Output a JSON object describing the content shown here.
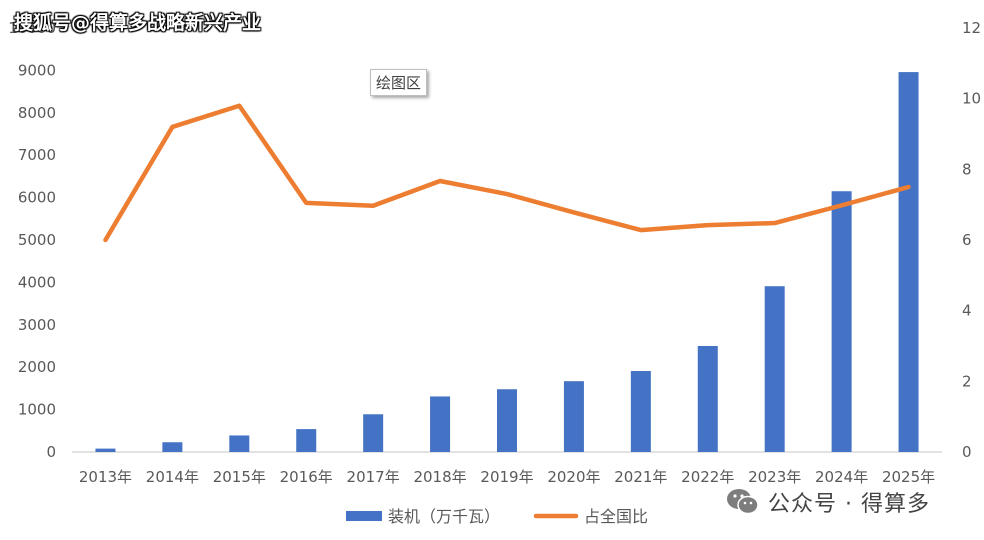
{
  "watermark_top": "搜狐号@得算多战略新兴产业",
  "plot_area_label": "绘图区",
  "watermark_bottom": "公众号 · 得算多",
  "colors": {
    "bar": "#4472C4",
    "line": "#ED7D31",
    "axis": "#d9d9d9",
    "text": "#595959"
  },
  "chart_data": {
    "type": "bar",
    "categories": [
      "2013年",
      "2014年",
      "2015年",
      "2016年",
      "2017年",
      "2018年",
      "2019年",
      "2020年",
      "2021年",
      "2022年",
      "2023年",
      "2024年",
      "2025年"
    ],
    "series": [
      {
        "name": "装机（万千瓦）",
        "type": "bar",
        "axis": "left",
        "values": [
          80,
          230,
          390,
          540,
          890,
          1310,
          1480,
          1670,
          1910,
          2500,
          3910,
          6150,
          8960
        ]
      },
      {
        "name": "占全国比",
        "type": "line",
        "axis": "right",
        "values": [
          6.0,
          9.2,
          9.8,
          7.05,
          6.97,
          7.67,
          7.3,
          6.78,
          6.28,
          6.42,
          6.48,
          6.98,
          7.5
        ]
      }
    ],
    "y_left": {
      "ticks": [
        "0",
        "1000",
        "2000",
        "3000",
        "4000",
        "5000",
        "6000",
        "7000",
        "8000",
        "9000",
        "10000"
      ],
      "range": [
        0,
        10000
      ]
    },
    "y_right": {
      "ticks": [
        "0",
        "2",
        "4",
        "6",
        "8",
        "10",
        "12"
      ],
      "range": [
        0,
        12
      ]
    },
    "legend_position": "bottom",
    "grid": false
  }
}
